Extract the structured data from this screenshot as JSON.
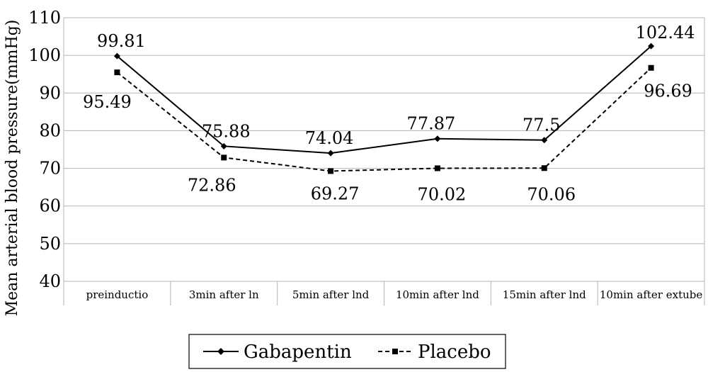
{
  "chart_data": {
    "type": "line",
    "ylabel": "Mean arterial blood pressure(mmHg)",
    "xlabel": "",
    "ylim": [
      40,
      110
    ],
    "yticks": [
      40,
      50,
      60,
      70,
      80,
      90,
      100,
      110
    ],
    "grid": "horizontal",
    "legend_position": "bottom",
    "categories": [
      "preinductio",
      "3min after ln",
      "5min after lnd",
      "10min after lnd",
      "15min after lnd",
      "10min after extube"
    ],
    "series": [
      {
        "name": "Gabapentin",
        "values": [
          99.81,
          75.88,
          74.04,
          77.87,
          77.5,
          102.44
        ],
        "labels": [
          "99.81",
          "75.88",
          "74.04",
          "77.87",
          "77.5",
          "102.44"
        ],
        "style": "solid",
        "marker": "diamond",
        "color": "#000000"
      },
      {
        "name": "Placebo",
        "values": [
          95.49,
          72.86,
          69.27,
          70.02,
          70.06,
          96.69
        ],
        "labels": [
          "95.49",
          "72.86",
          "69.27",
          "70.02",
          "70.06",
          "96.69"
        ],
        "style": "dashed",
        "marker": "square",
        "color": "#000000"
      }
    ]
  }
}
